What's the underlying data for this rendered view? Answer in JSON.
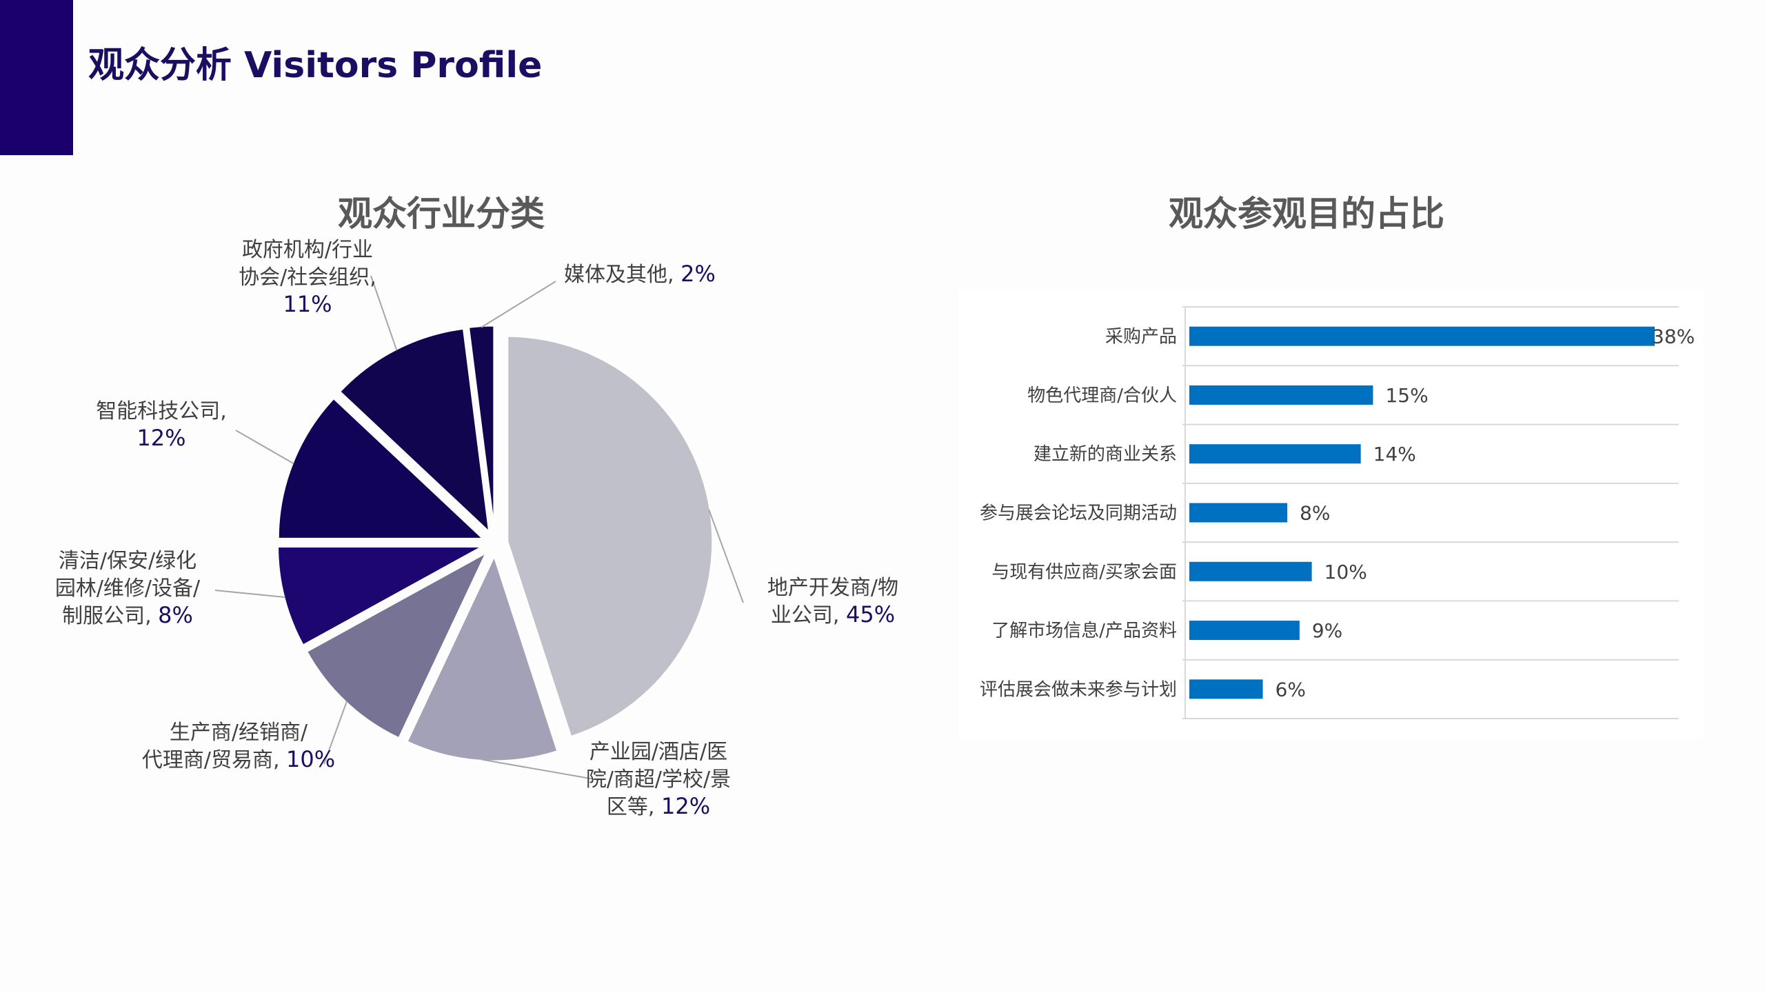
{
  "page": {
    "title": "观众分析 Visitors Profile"
  },
  "colors": {
    "accent": "#19006b",
    "title_text": "#1a0e63",
    "chart_title_text": "#595959",
    "label_text": "#404040",
    "pct_text": "#1a0e63",
    "bar": "#0070c0",
    "grid": "#d9d9d9",
    "pie_slices": [
      "#c0c0cb",
      "#a3a1b7",
      "#777394",
      "#1e0670",
      "#100358",
      "#12054f",
      "#12054f"
    ]
  },
  "chart_data": [
    {
      "type": "pie",
      "title": "观众行业分类",
      "separator": ", ",
      "slices": [
        {
          "label": "地产开发商/物业公司",
          "label_lines": [
            "地产开发商/物",
            "业公司"
          ],
          "value": 45,
          "value_label": "45%"
        },
        {
          "label": "产业园/酒店/医院/商超/学校/景区等",
          "label_lines": [
            "产业园/酒店/医",
            "院/商超/学校/景",
            "区等"
          ],
          "value": 12,
          "value_label": "12%"
        },
        {
          "label": "生产商/经销商/代理商/贸易商",
          "label_lines": [
            "生产商/经销商/",
            "代理商/贸易商"
          ],
          "value": 10,
          "value_label": "10%"
        },
        {
          "label": "清洁/保安/绿化园林/维修/设备/制服公司",
          "label_lines": [
            "清洁/保安/绿化",
            "园林/维修/设备/",
            "制服公司"
          ],
          "value": 8,
          "value_label": "8%"
        },
        {
          "label": "智能科技公司",
          "label_lines": [
            "智能科技公司"
          ],
          "value": 12,
          "value_label": "12%"
        },
        {
          "label": "政府机构/行业协会/社会组织",
          "label_lines": [
            "政府机构/行业",
            "协会/社会组织"
          ],
          "value": 11,
          "value_label": "11%"
        },
        {
          "label": "媒体及其他",
          "label_lines": [
            "媒体及其他"
          ],
          "value": 2,
          "value_label": "2%"
        }
      ]
    },
    {
      "type": "bar",
      "orientation": "horizontal",
      "title": "观众参观目的占比",
      "categories": [
        "采购产品",
        "物色代理商/合伙人",
        "建立新的商业关系",
        "参与展会论坛及同期活动",
        "与现有供应商/买家会面",
        "了解市场信息/产品资料",
        "评估展会做未来参与计划"
      ],
      "values": [
        38,
        15,
        14,
        8,
        10,
        9,
        6
      ],
      "value_labels": [
        "38%",
        "15%",
        "14%",
        "8%",
        "10%",
        "9%",
        "6%"
      ],
      "xlim": [
        0,
        40
      ],
      "grid": true,
      "legend": "none"
    }
  ]
}
